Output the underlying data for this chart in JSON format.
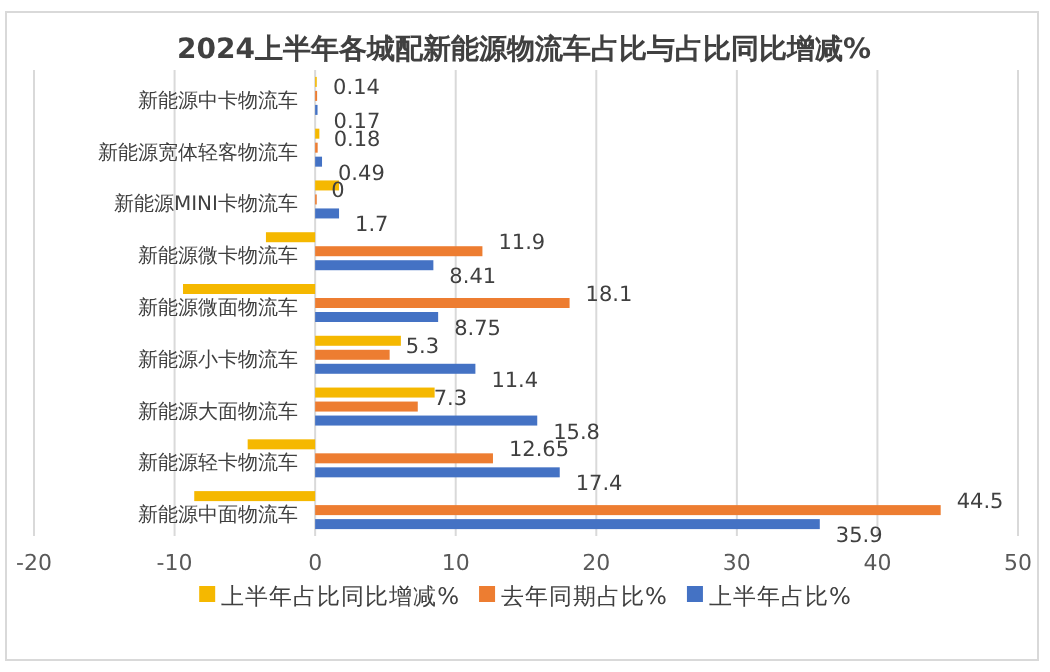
{
  "chart_data": {
    "type": "bar",
    "orientation": "horizontal",
    "title": "2024上半年各城配新能源物流车占比与占比同比增减%",
    "categories": [
      "新能源中卡物流车",
      "新能源宽体轻客物流车",
      "新能源MINI卡物流车",
      "新能源微卡物流车",
      "新能源微面物流车",
      "新能源小卡物流车",
      "新能源大面物流车",
      "新能源轻卡物流车",
      "新能源中面物流车"
    ],
    "series": [
      {
        "name": "上半年占比同比增减%",
        "color": "#f5b800",
        "values": [
          0.1,
          0.3,
          1.7,
          -3.5,
          -9.4,
          6.1,
          8.5,
          -4.8,
          -8.6
        ]
      },
      {
        "name": "去年同期占比%",
        "color": "#ed7d31",
        "values": [
          0.14,
          0.18,
          0,
          11.9,
          18.1,
          5.3,
          7.3,
          12.65,
          44.5
        ],
        "value_labels": [
          "0.14",
          "0.18",
          "0",
          "11.9",
          "18.1",
          "5.3",
          "7.3",
          "12.65",
          "44.5"
        ]
      },
      {
        "name": "上半年占比%",
        "color": "#4472c4",
        "values": [
          0.17,
          0.49,
          1.7,
          8.41,
          8.75,
          11.4,
          15.8,
          17.4,
          35.9
        ],
        "value_labels": [
          "0.17",
          "0.49",
          "1.7",
          "8.41",
          "8.75",
          "11.4",
          "15.8",
          "17.4",
          "35.9"
        ]
      }
    ],
    "xlim": [
      -20,
      50
    ],
    "xticks": [
      -20,
      -10,
      0,
      10,
      20,
      30,
      40,
      50
    ],
    "grid": "x",
    "legend": "bottom"
  }
}
